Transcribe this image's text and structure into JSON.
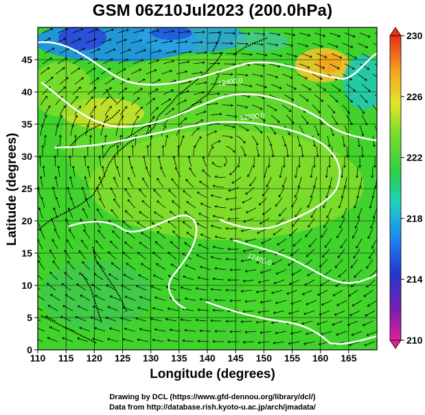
{
  "title": "GSM 06Z10Jul2023 (200.0hPa)",
  "xlabel": "Longitude (degrees)",
  "ylabel": "Latitude  (degrees)",
  "credits": [
    "Drawing by DCL (https://www.gfd-dennou.org/library/dcl/)",
    "Data from http://database.rish.kyoto-u.ac.jp/arch/jmadata/"
  ],
  "map": {
    "lon_range": [
      110,
      170
    ],
    "lat_range": [
      0,
      50
    ],
    "lon_ticks": [
      "110",
      "115",
      "120",
      "125",
      "130",
      "135",
      "140",
      "145",
      "150",
      "155",
      "160",
      "165"
    ],
    "lat_ticks": [
      "0",
      "5",
      "10",
      "15",
      "20",
      "25",
      "30",
      "35",
      "40",
      "45"
    ],
    "contour_labels": [
      "12400.0",
      "12300.0",
      "12400.0"
    ],
    "colors": {
      "contour": "#ffffff",
      "coast": "#000000",
      "vector": "#000000"
    }
  },
  "colorbar": {
    "range": [
      210,
      230
    ],
    "tick_labels": [
      "230",
      "226",
      "222",
      "218",
      "214",
      "210"
    ],
    "colors": [
      "#e0209a",
      "#5a1fb5",
      "#1f4fd8",
      "#1fb0e8",
      "#20d28c",
      "#3acc2a",
      "#8ee02a",
      "#e6e62a",
      "#f0a020",
      "#e83a1a"
    ]
  }
}
